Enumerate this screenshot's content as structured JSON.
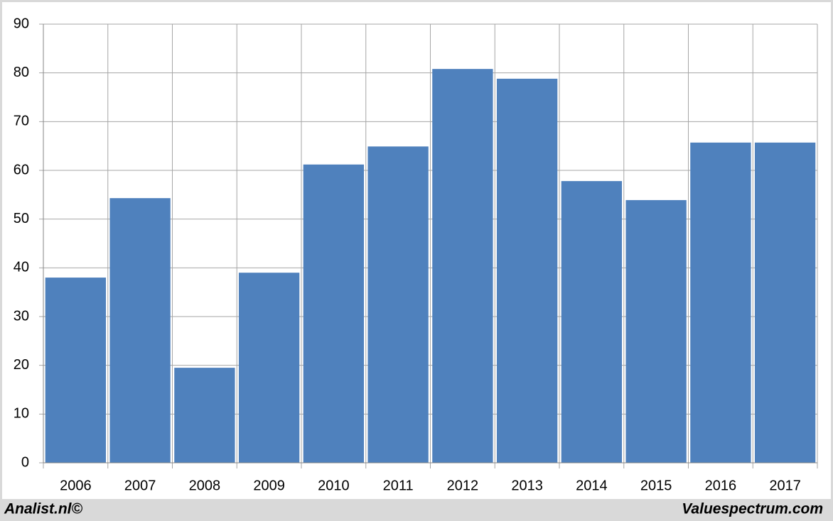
{
  "chart_data": {
    "type": "bar",
    "categories": [
      "2006",
      "2007",
      "2008",
      "2009",
      "2010",
      "2011",
      "2012",
      "2013",
      "2014",
      "2015",
      "2016",
      "2017"
    ],
    "values": [
      38.0,
      54.3,
      19.5,
      39.0,
      61.2,
      64.9,
      80.8,
      78.8,
      57.8,
      53.9,
      65.7,
      65.7
    ],
    "color": "#4f81bd",
    "ylim": [
      0,
      90
    ],
    "yticks": [
      0,
      10,
      20,
      30,
      40,
      50,
      60,
      70,
      80,
      90
    ],
    "grid": true,
    "credits": [
      "Analist.nl©",
      "Valuespectrum.com"
    ]
  }
}
